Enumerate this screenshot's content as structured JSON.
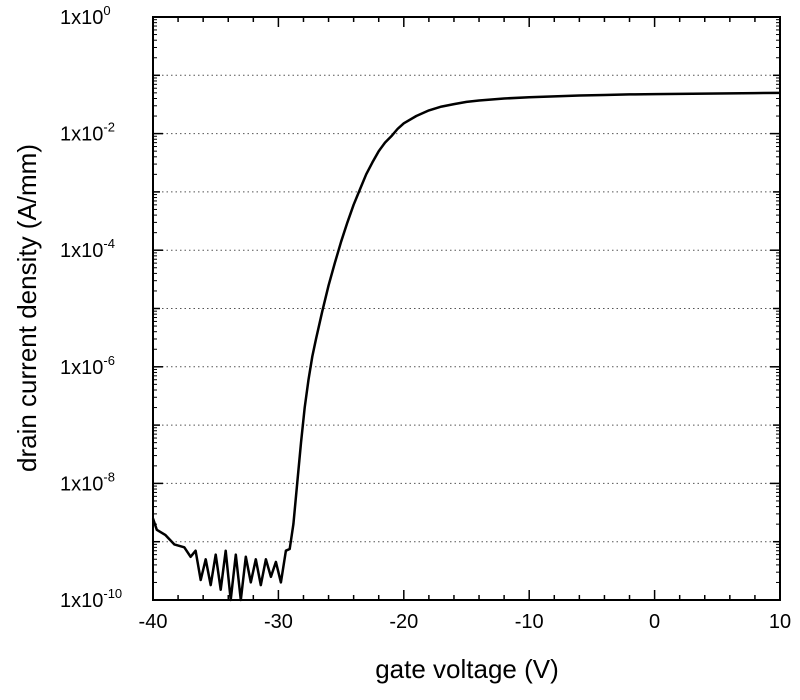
{
  "chart_data": {
    "type": "line",
    "title": "",
    "xlabel": "gate voltage (V)",
    "ylabel": "drain current density (A/mm)",
    "xlim": [
      -40,
      10
    ],
    "ylim": [
      1e-10,
      1
    ],
    "yscale": "log",
    "grid": "horizontal dotted at every decade",
    "x_ticks": [
      -40,
      -30,
      -20,
      -10,
      0,
      10
    ],
    "y_ticks": [
      {
        "value": 1e-10,
        "label": "1x10",
        "exp": "-10"
      },
      {
        "value": 1e-08,
        "label": "1x10",
        "exp": "-8"
      },
      {
        "value": 1e-06,
        "label": "1x10",
        "exp": "-6"
      },
      {
        "value": 0.0001,
        "label": "1x10",
        "exp": "-4"
      },
      {
        "value": 0.01,
        "label": "1x10",
        "exp": "-2"
      },
      {
        "value": 1,
        "label": "1x10",
        "exp": "0"
      }
    ],
    "series": [
      {
        "color": "#000000",
        "x": [
          -40,
          -39.7,
          -39,
          -38.3,
          -37.5,
          -37,
          -36.6,
          -36.2,
          -35.8,
          -35.4,
          -35,
          -34.6,
          -34.2,
          -33.8,
          -33.4,
          -33,
          -32.6,
          -32.2,
          -31.8,
          -31.4,
          -31,
          -30.6,
          -30.2,
          -29.8,
          -29.4,
          -29.1,
          -28.8,
          -28.5,
          -28.2,
          -27.9,
          -27.6,
          -27.3,
          -27,
          -26.5,
          -26,
          -25.5,
          -25,
          -24.5,
          -24,
          -23.5,
          -23,
          -22.5,
          -22,
          -21.5,
          -21,
          -20.5,
          -20,
          -19,
          -18,
          -17,
          -16,
          -15,
          -14,
          -12,
          -10,
          -8,
          -6,
          -4,
          -2,
          0,
          2,
          4,
          6,
          8,
          10
        ],
        "y": [
          2.5e-09,
          1.6e-09,
          1.3e-09,
          9e-10,
          8e-10,
          5.5e-10,
          7e-10,
          2.2e-10,
          5e-10,
          1.8e-10,
          6e-10,
          1.5e-10,
          7e-10,
          1e-10,
          6e-10,
          1e-10,
          5.5e-10,
          2e-10,
          5e-10,
          1.8e-10,
          5e-10,
          2.5e-10,
          4.5e-10,
          2e-10,
          7e-10,
          7.5e-10,
          2e-09,
          1e-08,
          5e-08,
          2e-07,
          6e-07,
          1.5e-06,
          3e-06,
          9e-06,
          2.5e-05,
          6e-05,
          0.00014,
          0.0003,
          0.0006,
          0.0011,
          0.002,
          0.0032,
          0.005,
          0.007,
          0.009,
          0.012,
          0.015,
          0.02,
          0.025,
          0.029,
          0.032,
          0.035,
          0.037,
          0.04,
          0.042,
          0.0435,
          0.045,
          0.046,
          0.047,
          0.0475,
          0.048,
          0.0485,
          0.049,
          0.0495,
          0.05
        ]
      }
    ]
  }
}
